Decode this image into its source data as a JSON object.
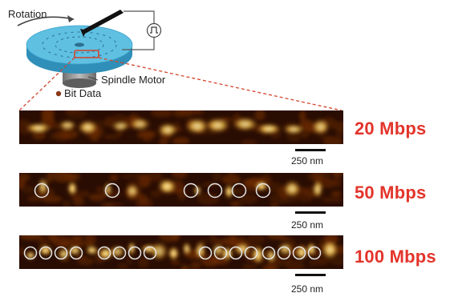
{
  "labels": {
    "rotation": "Rotation",
    "spindle_motor": "Spindle Motor",
    "bit_data": "Bit Data"
  },
  "panels": [
    {
      "rate_label": "20 Mbps",
      "scale_label": "250 nm",
      "circle_count": 0
    },
    {
      "rate_label": "50 Mbps",
      "scale_label": "250 nm",
      "circle_count": 7
    },
    {
      "rate_label": "100 Mbps",
      "scale_label": "250 nm",
      "circle_count": 16
    }
  ],
  "colors": {
    "rate_text": "#e3342b",
    "disk_top": "#5fc0e2",
    "disk_side": "#2f8fb8",
    "zoom_line": "#d2452b",
    "bit_dot": "#8b3a1a"
  }
}
